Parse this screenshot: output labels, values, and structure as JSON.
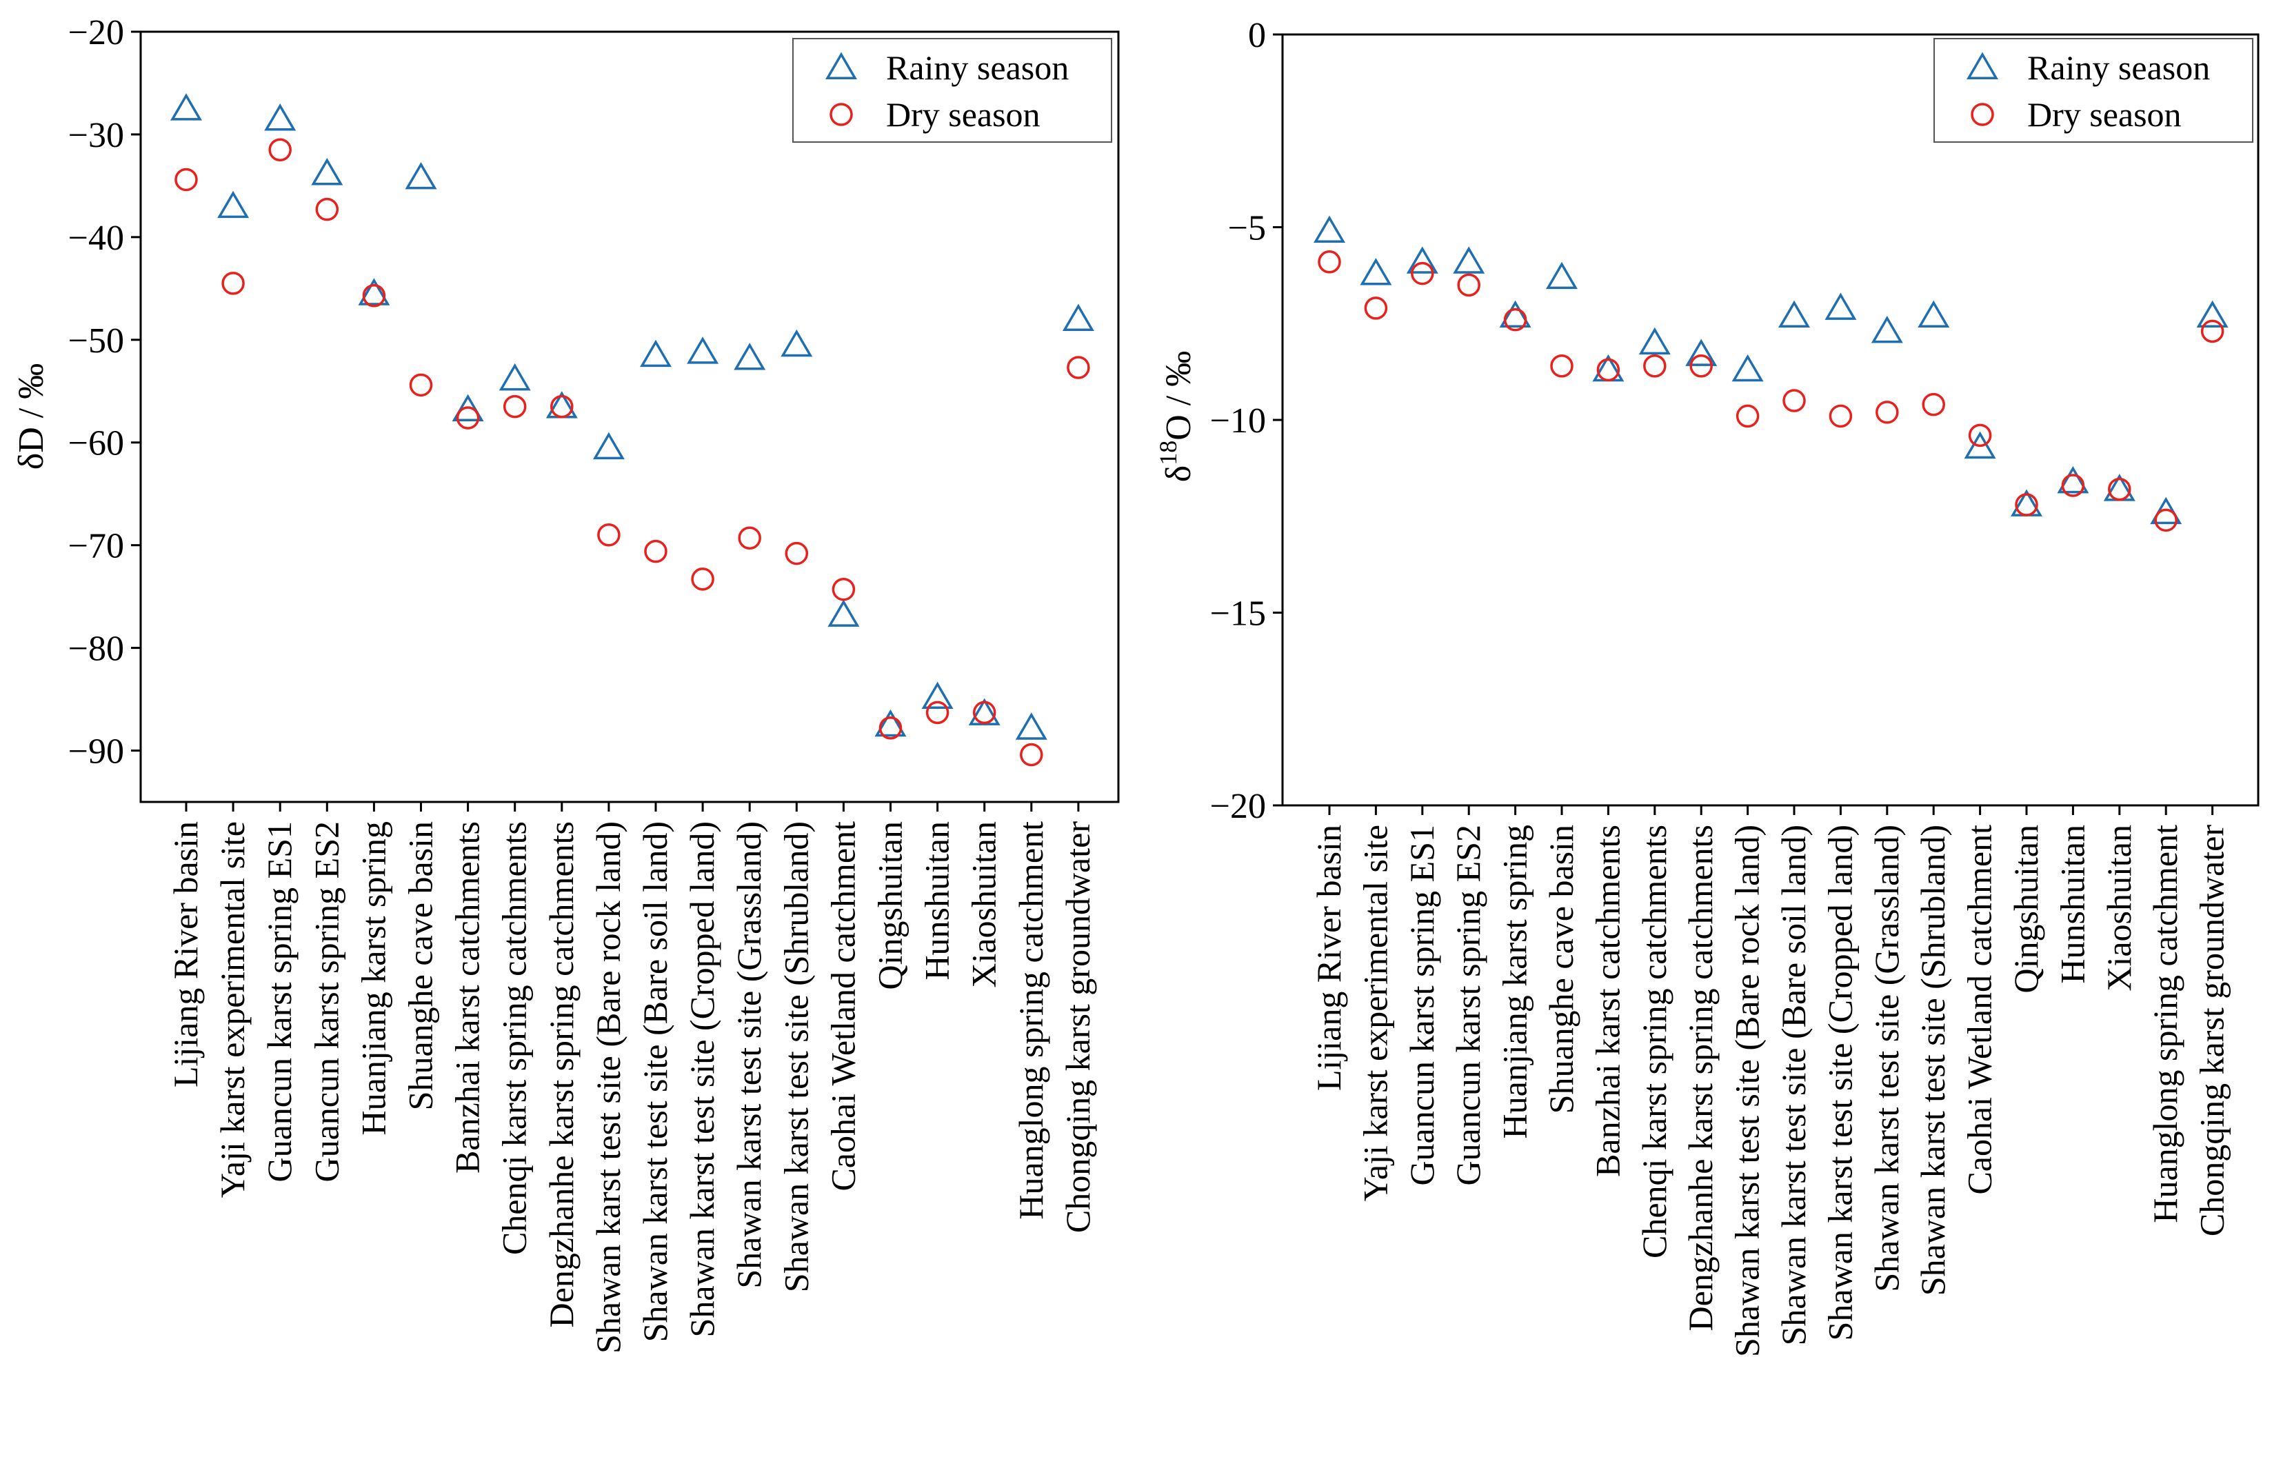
{
  "colors": {
    "rainy": "#1f6fb0",
    "dry": "#e8211d",
    "axis": "#000000"
  },
  "chart_data": [
    {
      "type": "scatter",
      "panel": "left",
      "ylabel": "δD / ‰",
      "ylim": [
        -95,
        -20
      ],
      "yticks": [
        -20,
        -30,
        -40,
        -50,
        -60,
        -70,
        -80,
        -90
      ],
      "legend": {
        "placement": "top-right",
        "entries": [
          "Rainy season",
          "Dry season"
        ]
      },
      "categories": [
        "Lijiang River basin",
        "Yaji karst experimental site",
        "Guancun karst spring ES1",
        "Guancun karst spring ES2",
        "Huanjiang karst spring",
        "Shuanghe cave basin",
        "Banzhai karst catchments",
        "Chenqi karst spring catchments",
        "Dengzhanhe karst spring catchments",
        "Shawan karst test site (Bare rock land)",
        "Shawan karst test site (Bare soil land)",
        "Shawan karst test site (Cropped land)",
        "Shawan karst test site (Grassland)",
        "Shawan karst test site (Shrubland)",
        "Caohai Wetland catchment",
        "Qingshuitan",
        "Hunshuitan",
        "Xiaoshuitan",
        "Huanglong spring catchment",
        "Chongqing karst groundwater"
      ],
      "series": [
        {
          "name": "Rainy season",
          "marker": "triangle",
          "values": [
            -27.5,
            -37,
            -28.5,
            -33.8,
            -45.5,
            -34.2,
            -56.8,
            -53.8,
            -56.5,
            -60.5,
            -51.5,
            -51.2,
            -51.8,
            -50.5,
            -76.8,
            -87.5,
            -84.8,
            -86.4,
            -87.8,
            -48
          ]
        },
        {
          "name": "Dry season",
          "marker": "circle",
          "values": [
            -34.4,
            -44.5,
            -31.5,
            -37.3,
            -45.7,
            -54.4,
            -57.6,
            -56.5,
            -56.5,
            -69,
            -70.6,
            -73.3,
            -69.3,
            -70.8,
            -74.3,
            -87.8,
            -86.3,
            -86.3,
            -90.4,
            -52.7
          ]
        }
      ]
    },
    {
      "type": "scatter",
      "panel": "right",
      "ylabel_base": "δ",
      "ylabel_sup": "18",
      "ylabel_rest": "O / ‰",
      "ylim": [
        -20,
        0
      ],
      "yticks": [
        0,
        -5,
        -10,
        -15,
        -20
      ],
      "legend": {
        "placement": "top-right",
        "entries": [
          "Rainy season",
          "Dry season"
        ]
      },
      "categories": [
        "Lijiang River basin",
        "Yaji karst experimental site",
        "Guancun karst spring ES1",
        "Guancun karst spring ES2",
        "Huanjiang karst spring",
        "Shuanghe cave basin",
        "Banzhai karst catchments",
        "Chenqi karst spring catchments",
        "Dengzhanhe karst spring catchments",
        "Shawan karst test site (Bare rock land)",
        "Shawan karst test site (Bare soil land)",
        "Shawan karst test site (Cropped land)",
        "Shawan karst test site (Grassland)",
        "Shawan karst test site (Shrubland)",
        "Caohai Wetland catchment",
        "Qingshuitan",
        "Hunshuitan",
        "Xiaoshuitan",
        "Huanglong spring catchment",
        "Chongqing karst groundwater"
      ],
      "series": [
        {
          "name": "Rainy season",
          "marker": "triangle",
          "values": [
            -5.1,
            -6.2,
            -5.9,
            -5.9,
            -7.3,
            -6.3,
            -8.7,
            -8,
            -8.3,
            -8.7,
            -7.3,
            -7.1,
            -7.7,
            -7.3,
            -10.7,
            -12.2,
            -11.6,
            -11.8,
            -12.4,
            -7.3
          ]
        },
        {
          "name": "Dry season",
          "marker": "circle",
          "values": [
            -5.9,
            -7.1,
            -6.2,
            -6.5,
            -7.4,
            -8.6,
            -8.7,
            -8.6,
            -8.6,
            -9.9,
            -9.5,
            -9.9,
            -9.8,
            -9.6,
            -10.4,
            -12.2,
            -11.7,
            -11.8,
            -12.6,
            -7.7
          ]
        }
      ]
    }
  ]
}
